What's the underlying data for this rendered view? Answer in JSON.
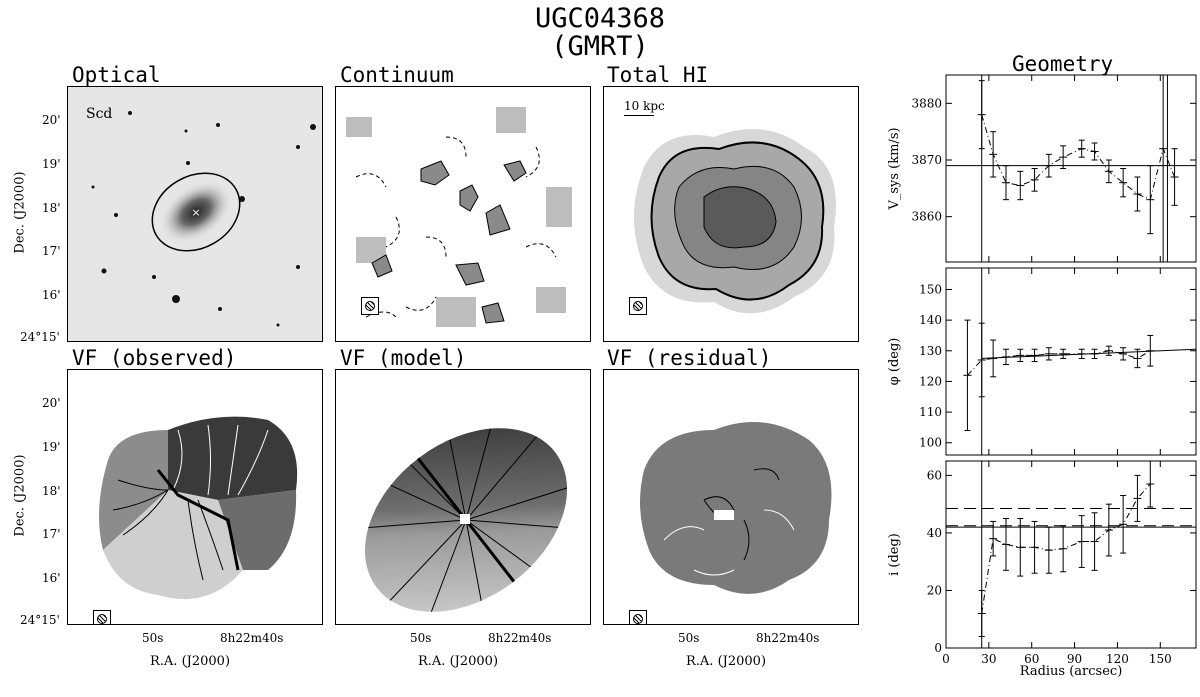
{
  "title_line1": "UGC04368",
  "title_line2": "(GMRT)",
  "panels": {
    "optical": "Optical",
    "continuum": "Continuum",
    "total_hi": "Total HI",
    "vf_observed": "VF (observed)",
    "vf_model": "VF (model)",
    "vf_residual": "VF (residual)",
    "geometry": "Geometry"
  },
  "optical_type": "Scd",
  "scale_bar": "10 kpc",
  "dec_axis": {
    "label": "Dec. (J2000)",
    "ticks": [
      "20'",
      "19'",
      "18'",
      "17'",
      "16'",
      "24°15'"
    ]
  },
  "ra_axis": {
    "label": "R.A. (J2000)",
    "ticks": [
      "50s",
      "8h22m40s"
    ]
  },
  "colors": {
    "line": "#000000",
    "contour_white": "#ffffff"
  },
  "chart_data": [
    {
      "type": "scatter",
      "panel": "vsys",
      "xlabel": "Radius (arcsec)",
      "ylabel": "V_sys (km/s)",
      "xlim": [
        0,
        175
      ],
      "ylim": [
        3852,
        3885
      ],
      "yticks": [
        3860,
        3870,
        3880
      ],
      "hline": 3869,
      "x": [
        25,
        33,
        42,
        52,
        62,
        72,
        82,
        95,
        104,
        114,
        124,
        134,
        143,
        152,
        160
      ],
      "y": [
        3878,
        3871,
        3866,
        3865.5,
        3866.5,
        3869,
        3870.5,
        3872,
        3871.5,
        3868,
        3866,
        3864,
        3863,
        3872,
        3867
      ],
      "err": [
        6,
        4,
        3,
        2.5,
        2,
        2,
        2,
        1.5,
        1.5,
        2,
        2.5,
        3,
        6,
        20,
        5
      ]
    },
    {
      "type": "scatter",
      "panel": "phi",
      "ylabel": "φ (deg)",
      "xlim": [
        0,
        175
      ],
      "ylim": [
        96,
        157
      ],
      "yticks": [
        100,
        110,
        120,
        130,
        140,
        150
      ],
      "fit_line": [
        [
          25,
          127.5
        ],
        [
          175,
          130.5
        ]
      ],
      "x": [
        15,
        25,
        33,
        42,
        52,
        62,
        72,
        82,
        95,
        104,
        114,
        124,
        134,
        143
      ],
      "y": [
        122,
        127,
        127.5,
        128,
        128.5,
        128.5,
        129,
        129,
        129,
        129,
        130,
        129,
        127.5,
        130
      ],
      "err": [
        18,
        12,
        6,
        2.5,
        2,
        2,
        2,
        1.5,
        1.5,
        1.5,
        1.5,
        2,
        3,
        5
      ]
    },
    {
      "type": "scatter",
      "panel": "incl",
      "ylabel": "i (deg)",
      "xlim": [
        0,
        175
      ],
      "ylim": [
        0,
        65
      ],
      "yticks": [
        0,
        20,
        40,
        60
      ],
      "xticks": [
        0,
        30,
        60,
        90,
        120,
        150
      ],
      "hline": 42,
      "dashed": [
        48.5,
        42.5
      ],
      "x": [
        25,
        33,
        42,
        52,
        62,
        72,
        82,
        95,
        104,
        114,
        124,
        134,
        143
      ],
      "y": [
        12,
        38,
        36,
        35,
        35,
        34,
        34.5,
        37,
        37,
        41,
        43,
        52,
        57
      ],
      "err": [
        8,
        6,
        9,
        10,
        9,
        8,
        8,
        9,
        10,
        9,
        10,
        8,
        8
      ]
    }
  ]
}
